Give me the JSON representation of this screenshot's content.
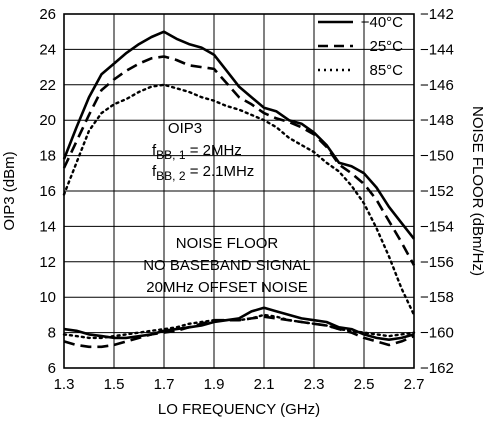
{
  "chart_data": {
    "type": "line",
    "xlabel": "LO FREQUENCY (GHz)",
    "ylabel_left": "OIP3 (dBm)",
    "ylabel_right": "NOISE FLOOR (dBm/Hz)",
    "xlim": [
      1.3,
      2.7
    ],
    "ylim_left": [
      6,
      26
    ],
    "ylim_right": [
      -162,
      -142
    ],
    "x_ticks": [
      "1.3",
      "1.5",
      "1.7",
      "1.9",
      "2.1",
      "2.3",
      "2.5",
      "2.7"
    ],
    "y_ticks_left": [
      "6",
      "8",
      "10",
      "12",
      "14",
      "16",
      "18",
      "20",
      "22",
      "24",
      "26"
    ],
    "y_ticks_right": [
      "−162",
      "−160",
      "−158",
      "−156",
      "−154",
      "−152",
      "−150",
      "−148",
      "−146",
      "−144",
      "−142"
    ],
    "grid": true,
    "legend_position": "top-right",
    "annotations": {
      "oip3_title": "OIP3",
      "fbb1_main": "f",
      "fbb1_sub": "BB, 1",
      "fbb1_rest": " = 2MHz",
      "fbb2_main": "f",
      "fbb2_sub": "BB, 2",
      "fbb2_rest": " = 2.1MHz",
      "noise_line1": "NOISE FLOOR",
      "noise_line2": "NO BASEBAND SIGNAL",
      "noise_line3": "20MHz OFFSET NOISE"
    },
    "series": [
      {
        "name": "−40°C",
        "style": "solid",
        "group": "OIP3",
        "x": [
          1.3,
          1.35,
          1.4,
          1.45,
          1.5,
          1.55,
          1.6,
          1.65,
          1.7,
          1.75,
          1.8,
          1.85,
          1.9,
          1.95,
          2.0,
          2.05,
          2.1,
          2.15,
          2.2,
          2.25,
          2.3,
          2.35,
          2.4,
          2.45,
          2.5,
          2.55,
          2.6,
          2.65,
          2.7
        ],
        "values": [
          17.8,
          19.6,
          21.3,
          22.6,
          23.2,
          23.8,
          24.3,
          24.7,
          25.0,
          24.6,
          24.3,
          24.1,
          23.7,
          22.8,
          21.9,
          21.3,
          20.7,
          20.5,
          20.0,
          19.8,
          19.3,
          18.6,
          17.6,
          17.4,
          17.0,
          16.2,
          15.1,
          14.2,
          13.3
        ]
      },
      {
        "name": "25°C",
        "style": "dashed",
        "group": "OIP3",
        "x": [
          1.3,
          1.35,
          1.4,
          1.45,
          1.5,
          1.55,
          1.6,
          1.65,
          1.7,
          1.75,
          1.8,
          1.85,
          1.9,
          1.95,
          2.0,
          2.05,
          2.1,
          2.15,
          2.2,
          2.25,
          2.3,
          2.35,
          2.4,
          2.45,
          2.5,
          2.55,
          2.6,
          2.65,
          2.7
        ],
        "values": [
          17.3,
          18.8,
          20.3,
          21.7,
          22.3,
          22.8,
          23.2,
          23.5,
          23.6,
          23.4,
          23.1,
          23.0,
          22.9,
          22.1,
          21.3,
          20.9,
          20.4,
          20.1,
          19.9,
          19.6,
          19.2,
          18.5,
          17.5,
          17.0,
          16.4,
          15.5,
          14.3,
          13.1,
          11.8
        ]
      },
      {
        "name": "85°C",
        "style": "dotted",
        "group": "OIP3",
        "x": [
          1.3,
          1.35,
          1.4,
          1.45,
          1.5,
          1.55,
          1.6,
          1.65,
          1.7,
          1.75,
          1.8,
          1.85,
          1.9,
          1.95,
          2.0,
          2.05,
          2.1,
          2.15,
          2.2,
          2.25,
          2.3,
          2.35,
          2.4,
          2.45,
          2.5,
          2.55,
          2.6,
          2.65,
          2.7
        ],
        "values": [
          15.8,
          17.6,
          19.4,
          20.4,
          20.9,
          21.2,
          21.6,
          21.9,
          22.0,
          21.8,
          21.6,
          21.3,
          21.1,
          20.8,
          20.6,
          20.3,
          20.0,
          19.6,
          19.0,
          18.6,
          18.2,
          17.6,
          17.1,
          16.3,
          15.3,
          13.9,
          12.3,
          10.5,
          9.0
        ]
      },
      {
        "name": "−40°C",
        "style": "solid",
        "group": "NOISE FLOOR",
        "x": [
          1.3,
          1.35,
          1.4,
          1.45,
          1.5,
          1.55,
          1.6,
          1.65,
          1.7,
          1.75,
          1.8,
          1.85,
          1.9,
          1.95,
          2.0,
          2.05,
          2.1,
          2.15,
          2.2,
          2.25,
          2.3,
          2.35,
          2.4,
          2.45,
          2.5,
          2.55,
          2.6,
          2.65,
          2.7
        ],
        "values": [
          -159.8,
          -159.9,
          -160.1,
          -160.2,
          -160.3,
          -160.3,
          -160.2,
          -160.1,
          -159.9,
          -159.8,
          -159.7,
          -159.6,
          -159.4,
          -159.3,
          -159.2,
          -158.8,
          -158.6,
          -158.8,
          -159.0,
          -159.2,
          -159.3,
          -159.4,
          -159.7,
          -159.8,
          -160.1,
          -160.3,
          -160.4,
          -160.3,
          -160.1
        ]
      },
      {
        "name": "25°C",
        "style": "dashed",
        "group": "NOISE FLOOR",
        "x": [
          1.3,
          1.35,
          1.4,
          1.45,
          1.5,
          1.55,
          1.6,
          1.65,
          1.7,
          1.75,
          1.8,
          1.85,
          1.9,
          1.95,
          2.0,
          2.05,
          2.1,
          2.15,
          2.2,
          2.25,
          2.3,
          2.35,
          2.4,
          2.45,
          2.5,
          2.55,
          2.6,
          2.65,
          2.7
        ],
        "values": [
          -160.5,
          -160.7,
          -160.8,
          -160.8,
          -160.7,
          -160.5,
          -160.3,
          -160.1,
          -160.0,
          -159.9,
          -159.7,
          -159.5,
          -159.3,
          -159.3,
          -159.3,
          -159.2,
          -159.1,
          -159.2,
          -159.3,
          -159.4,
          -159.5,
          -159.6,
          -159.8,
          -160.0,
          -160.3,
          -160.5,
          -160.7,
          -160.5,
          -160.2
        ]
      },
      {
        "name": "85°C",
        "style": "dotted",
        "group": "NOISE FLOOR",
        "x": [
          1.3,
          1.35,
          1.4,
          1.45,
          1.5,
          1.55,
          1.6,
          1.65,
          1.7,
          1.75,
          1.8,
          1.85,
          1.9,
          1.95,
          2.0,
          2.05,
          2.1,
          2.15,
          2.2,
          2.25,
          2.3,
          2.35,
          2.4,
          2.45,
          2.5,
          2.55,
          2.6,
          2.65,
          2.7
        ],
        "values": [
          -160.1,
          -160.2,
          -160.3,
          -160.3,
          -160.2,
          -160.1,
          -160.0,
          -159.9,
          -159.8,
          -159.7,
          -159.5,
          -159.4,
          -159.3,
          -159.3,
          -159.3,
          -159.2,
          -159.0,
          -159.1,
          -159.3,
          -159.4,
          -159.5,
          -159.6,
          -159.8,
          -159.9,
          -160.0,
          -160.1,
          -160.2,
          -160.1,
          -160.0
        ]
      }
    ]
  }
}
